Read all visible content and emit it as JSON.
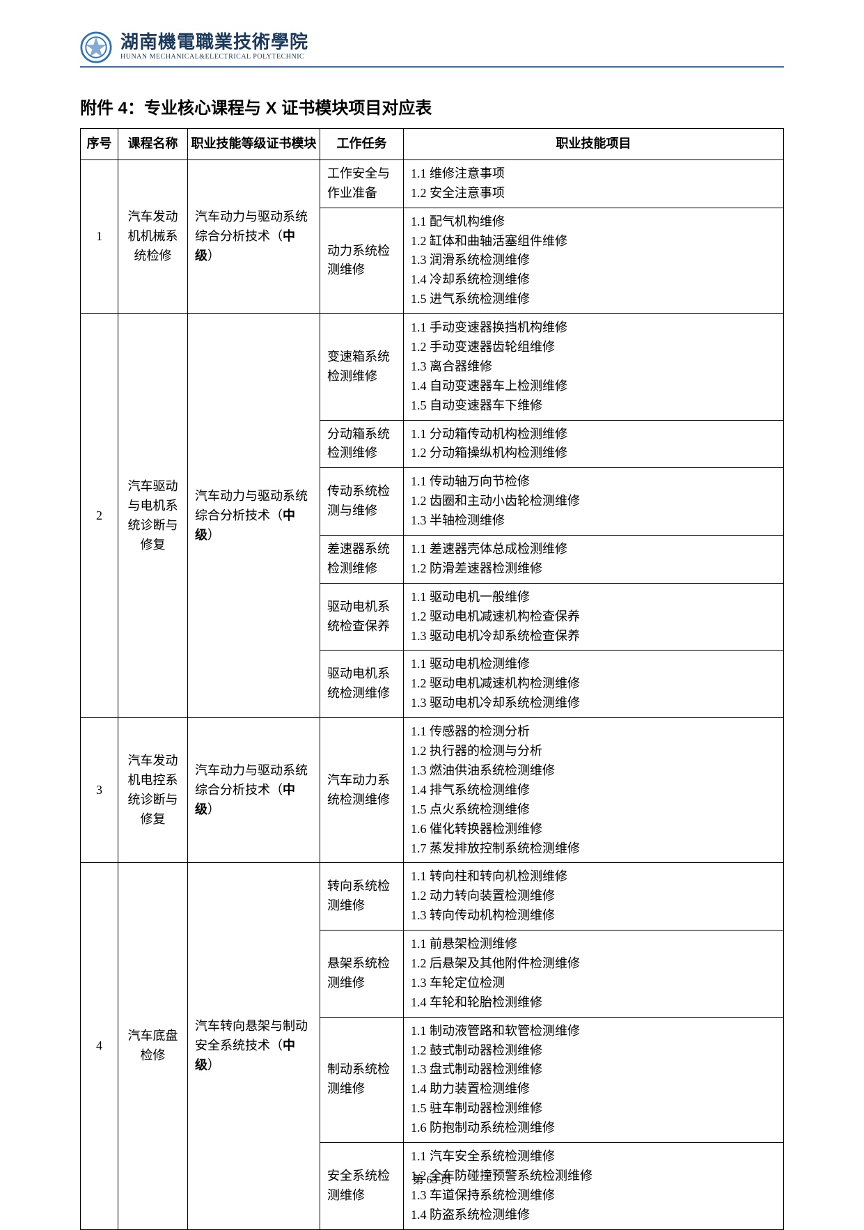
{
  "header": {
    "school_cn": "湖南機電職業技術學院",
    "school_en": "HUNAN MECHANICAL&ELECTRICAL POLYTECHNIC"
  },
  "title_prefix": "附件 4：",
  "title_rest": "专业核心课程与 X 证书模块项目对应表",
  "columns": {
    "seq": "序号",
    "course": "课程名称",
    "cert": "职业技能等级证书模块",
    "task": "工作任务",
    "skill": "职业技能项目"
  },
  "footer": "第 63 页",
  "cert_common_prefix": "汽车动力与驱动系统综合分析技术（",
  "cert_common_level": "中级",
  "cert_common_suffix": "）",
  "cert4_prefix": "汽车转向悬架与制动安全系统技术（",
  "rows": [
    {
      "seq": "1",
      "course": "汽车发动机机械系统检修",
      "cert_type": "drive",
      "tasks": [
        {
          "task": "工作安全与作业准备",
          "skills": [
            "1.1 维修注意事项",
            "1.2 安全注意事项"
          ]
        },
        {
          "task": "动力系统检测维修",
          "skills": [
            "1.1 配气机构维修",
            "1.2 缸体和曲轴活塞组件维修",
            "1.3 润滑系统检测维修",
            "1.4 冷却系统检测维修",
            "1.5 进气系统检测维修"
          ]
        }
      ]
    },
    {
      "seq": "2",
      "course": "汽车驱动与电机系统诊断与修复",
      "cert_type": "drive",
      "tasks": [
        {
          "task": "变速箱系统检测维修",
          "skills": [
            "1.1 手动变速器换挡机构维修",
            "1.2 手动变速器齿轮组维修",
            "1.3 离合器维修",
            "1.4 自动变速器车上检测维修",
            "1.5 自动变速器车下维修"
          ]
        },
        {
          "task": "分动箱系统检测维修",
          "skills": [
            "1.1 分动箱传动机构检测维修",
            "1.2 分动箱操纵机构检测维修"
          ]
        },
        {
          "task": "传动系统检测与维修",
          "skills": [
            "1.1 传动轴万向节检修",
            "1.2 齿圈和主动小齿轮检测维修",
            "1.3 半轴检测维修"
          ]
        },
        {
          "task": "差速器系统检测维修",
          "skills": [
            "1.1 差速器壳体总成检测维修",
            "1.2 防滑差速器检测维修"
          ]
        },
        {
          "task": "驱动电机系统检查保养",
          "skills": [
            "1.1 驱动电机一般维修",
            "1.2 驱动电机减速机构检查保养",
            "1.3 驱动电机冷却系统检查保养"
          ]
        },
        {
          "task": "驱动电机系统检测维修",
          "skills": [
            "1.1 驱动电机检测维修",
            "1.2 驱动电机减速机构检测维修",
            "1.3 驱动电机冷却系统检测维修"
          ]
        }
      ]
    },
    {
      "seq": "3",
      "course": "汽车发动机电控系统诊断与修复",
      "cert_type": "drive",
      "tasks": [
        {
          "task": "汽车动力系统检测维修",
          "skills": [
            "1.1 传感器的检测分析",
            "1.2 执行器的检测与分析",
            "1.3 燃油供油系统检测维修",
            "1.4 排气系统检测维修",
            "1.5 点火系统检测维修",
            "1.6 催化转换器检测维修",
            "1.7 蒸发排放控制系统检测维修"
          ]
        }
      ]
    },
    {
      "seq": "4",
      "course": "汽车底盘检修",
      "cert_type": "steer",
      "tasks": [
        {
          "task": "转向系统检测维修",
          "skills": [
            "1.1 转向柱和转向机检测维修",
            "1.2 动力转向装置检测维修",
            "1.3 转向传动机构检测维修"
          ]
        },
        {
          "task": "悬架系统检测维修",
          "skills": [
            "1.1 前悬架检测维修",
            "1.2 后悬架及其他附件检测维修",
            "1.3 车轮定位检测",
            "1.4 车轮和轮胎检测维修"
          ]
        },
        {
          "task": "制动系统检测维修",
          "skills": [
            "1.1 制动液管路和软管检测维修",
            "1.2 鼓式制动器检测维修",
            "1.3 盘式制动器检测维修",
            "1.4 助力装置检测维修",
            "1.5 驻车制动器检测维修",
            "1.6 防抱制动系统检测维修"
          ]
        },
        {
          "task": "安全系统检测维修",
          "skills": [
            "1.1 汽车安全系统检测维修",
            "1.2 全车防碰撞预警系统检测维修",
            "1.3 车道保持系统检测维修",
            "1.4 防盗系统检测维修"
          ]
        }
      ]
    }
  ]
}
